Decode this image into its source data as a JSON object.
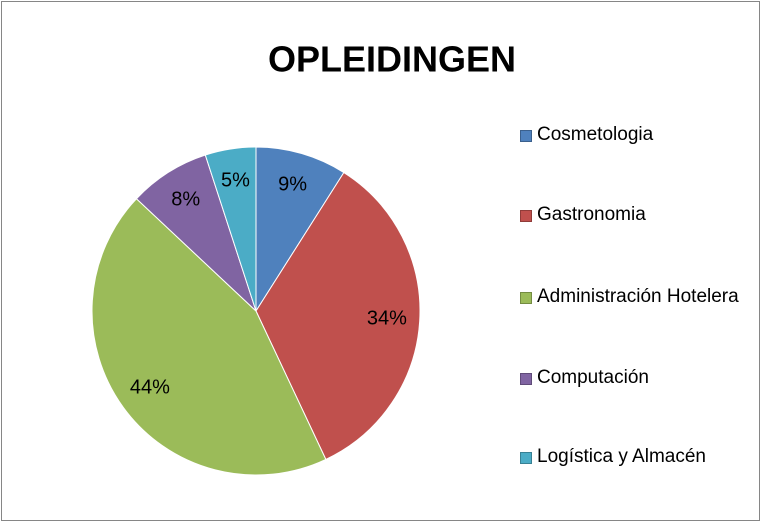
{
  "chart_data": {
    "type": "pie",
    "title": "OPLEIDINGEN",
    "categories": [
      "Cosmetologia",
      "Gastronomia",
      "Administración Hotelera",
      "Computación",
      "Logística y Almacén"
    ],
    "values": [
      9,
      34,
      44,
      8,
      5
    ],
    "value_labels": [
      "9%",
      "34%",
      "44%",
      "8%",
      "5%"
    ],
    "colors": [
      "#4f81bd",
      "#c0504d",
      "#9bbb59",
      "#8064a2",
      "#4bacc6"
    ],
    "legend": "right"
  }
}
